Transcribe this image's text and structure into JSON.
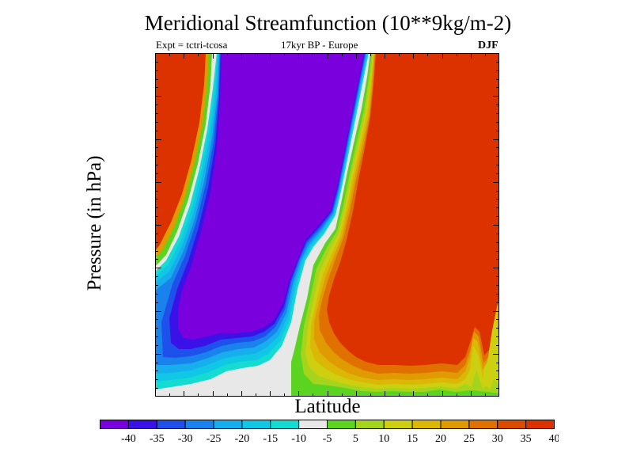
{
  "chart_data": {
    "type": "heatmap",
    "title": "Meridional Streamfunction (10**9kg/m-2)",
    "subtitle_left": "Expt = tctri-tcosa",
    "subtitle_center": "17kyr BP - Europe",
    "subtitle_right": "DJF",
    "xlabel": "Latitude",
    "ylabel": "Pressure (in hPa)",
    "xtick_labels": [],
    "ytick_labels": [],
    "colorbar": {
      "colors": [
        "#7a00de",
        "#3a12e8",
        "#1e50ec",
        "#1a82ec",
        "#16aeec",
        "#10c8e6",
        "#14dcd0",
        "#e8e8e8",
        "#5ad420",
        "#a4d41c",
        "#ccd010",
        "#dcb806",
        "#e09a02",
        "#e07000",
        "#dc4c00",
        "#dc3200"
      ],
      "labels": [
        "-40",
        "-35",
        "-30",
        "-25",
        "-20",
        "-15",
        "-10",
        "-5",
        "5",
        "10",
        "15",
        "20",
        "25",
        "30",
        "35",
        "40"
      ]
    },
    "field_description": "left-edge positive cell (40), large negative cell (-40) over most of latitude range aloft, positive cell (40) on right side"
  }
}
